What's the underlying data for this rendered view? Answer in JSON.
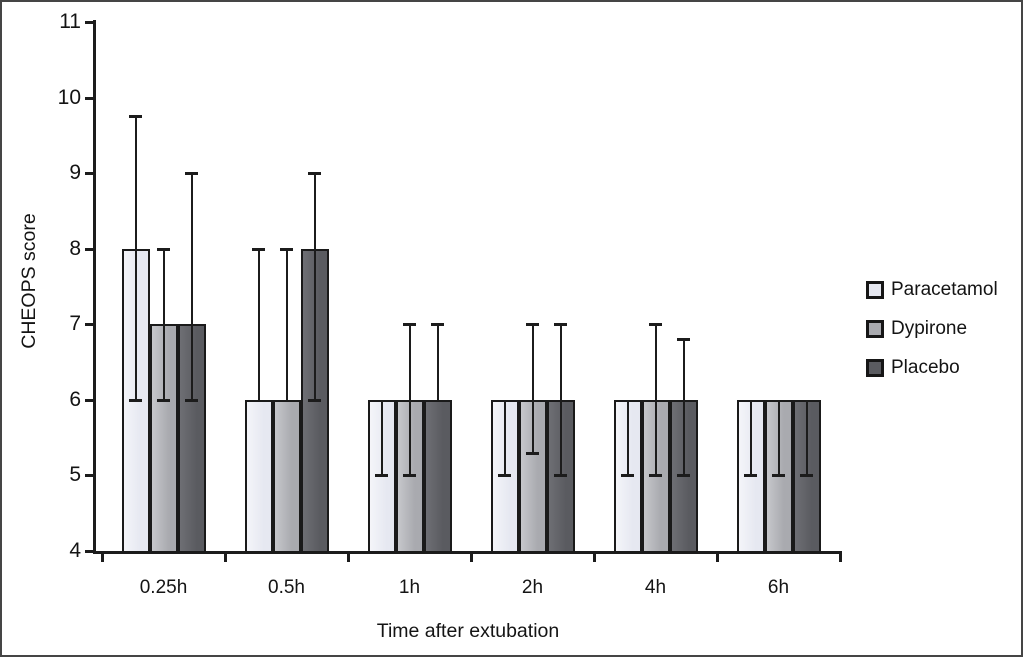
{
  "figure": {
    "background": "#ffffff",
    "border_color": "#454545",
    "axis_color": "#1c1c1c"
  },
  "chart_data": {
    "type": "bar",
    "title": "",
    "xlabel": "Time after extubation",
    "ylabel": "CHEOPS score",
    "categories": [
      "0.25h",
      "0.5h",
      "1h",
      "2h",
      "4h",
      "6h"
    ],
    "ylim": [
      4,
      11
    ],
    "yticks": [
      4,
      5,
      6,
      7,
      8,
      9,
      10,
      11
    ],
    "grid": false,
    "legend_position": "right",
    "error_bars": true,
    "series": [
      {
        "name": "Paracetamol",
        "color": "#e6e8f1",
        "color_edge": "#f4f5f9",
        "values": [
          8,
          6,
          6,
          6,
          6,
          6
        ],
        "err_low": [
          6,
          6,
          5,
          5,
          5,
          5
        ],
        "err_high": [
          9.75,
          8,
          6,
          6,
          6,
          6
        ]
      },
      {
        "name": "Dypirone",
        "color": "#a9aaaf",
        "color_edge": "#c6c7cb",
        "values": [
          7,
          6,
          6,
          6,
          6,
          6
        ],
        "err_low": [
          6,
          6,
          5,
          5.3,
          5,
          5
        ],
        "err_high": [
          8,
          8,
          7,
          7,
          7,
          6
        ]
      },
      {
        "name": "Placebo",
        "color": "#5a5b60",
        "color_edge": "#6e6f74",
        "values": [
          7,
          8,
          6,
          6,
          6,
          6
        ],
        "err_low": [
          6,
          6,
          6,
          5,
          5,
          5
        ],
        "err_high": [
          9,
          9,
          7,
          7,
          6.8,
          6
        ]
      }
    ]
  }
}
